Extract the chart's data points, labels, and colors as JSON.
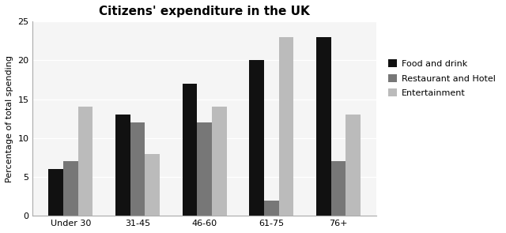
{
  "title": "Citizens' expenditure in the UK",
  "ylabel": "Percentage of total spending",
  "categories": [
    "Under 30",
    "31-45",
    "46-60",
    "61-75",
    "76+"
  ],
  "series": [
    {
      "name": "Food and drink",
      "values": [
        6,
        13,
        17,
        20,
        23
      ],
      "color": "#111111"
    },
    {
      "name": "Restaurant and Hotel",
      "values": [
        7,
        12,
        12,
        2,
        7
      ],
      "color": "#777777"
    },
    {
      "name": "Entertainment",
      "values": [
        14,
        8,
        14,
        23,
        13
      ],
      "color": "#bbbbbb"
    }
  ],
  "ylim": [
    0,
    25
  ],
  "yticks": [
    0,
    5,
    10,
    15,
    20,
    25
  ],
  "bar_width": 0.22,
  "figure_bg": "#ffffff",
  "plot_bg": "#f5f5f5",
  "grid_color": "#ffffff",
  "title_fontsize": 11,
  "ylabel_fontsize": 8,
  "tick_fontsize": 8,
  "legend_fontsize": 8
}
